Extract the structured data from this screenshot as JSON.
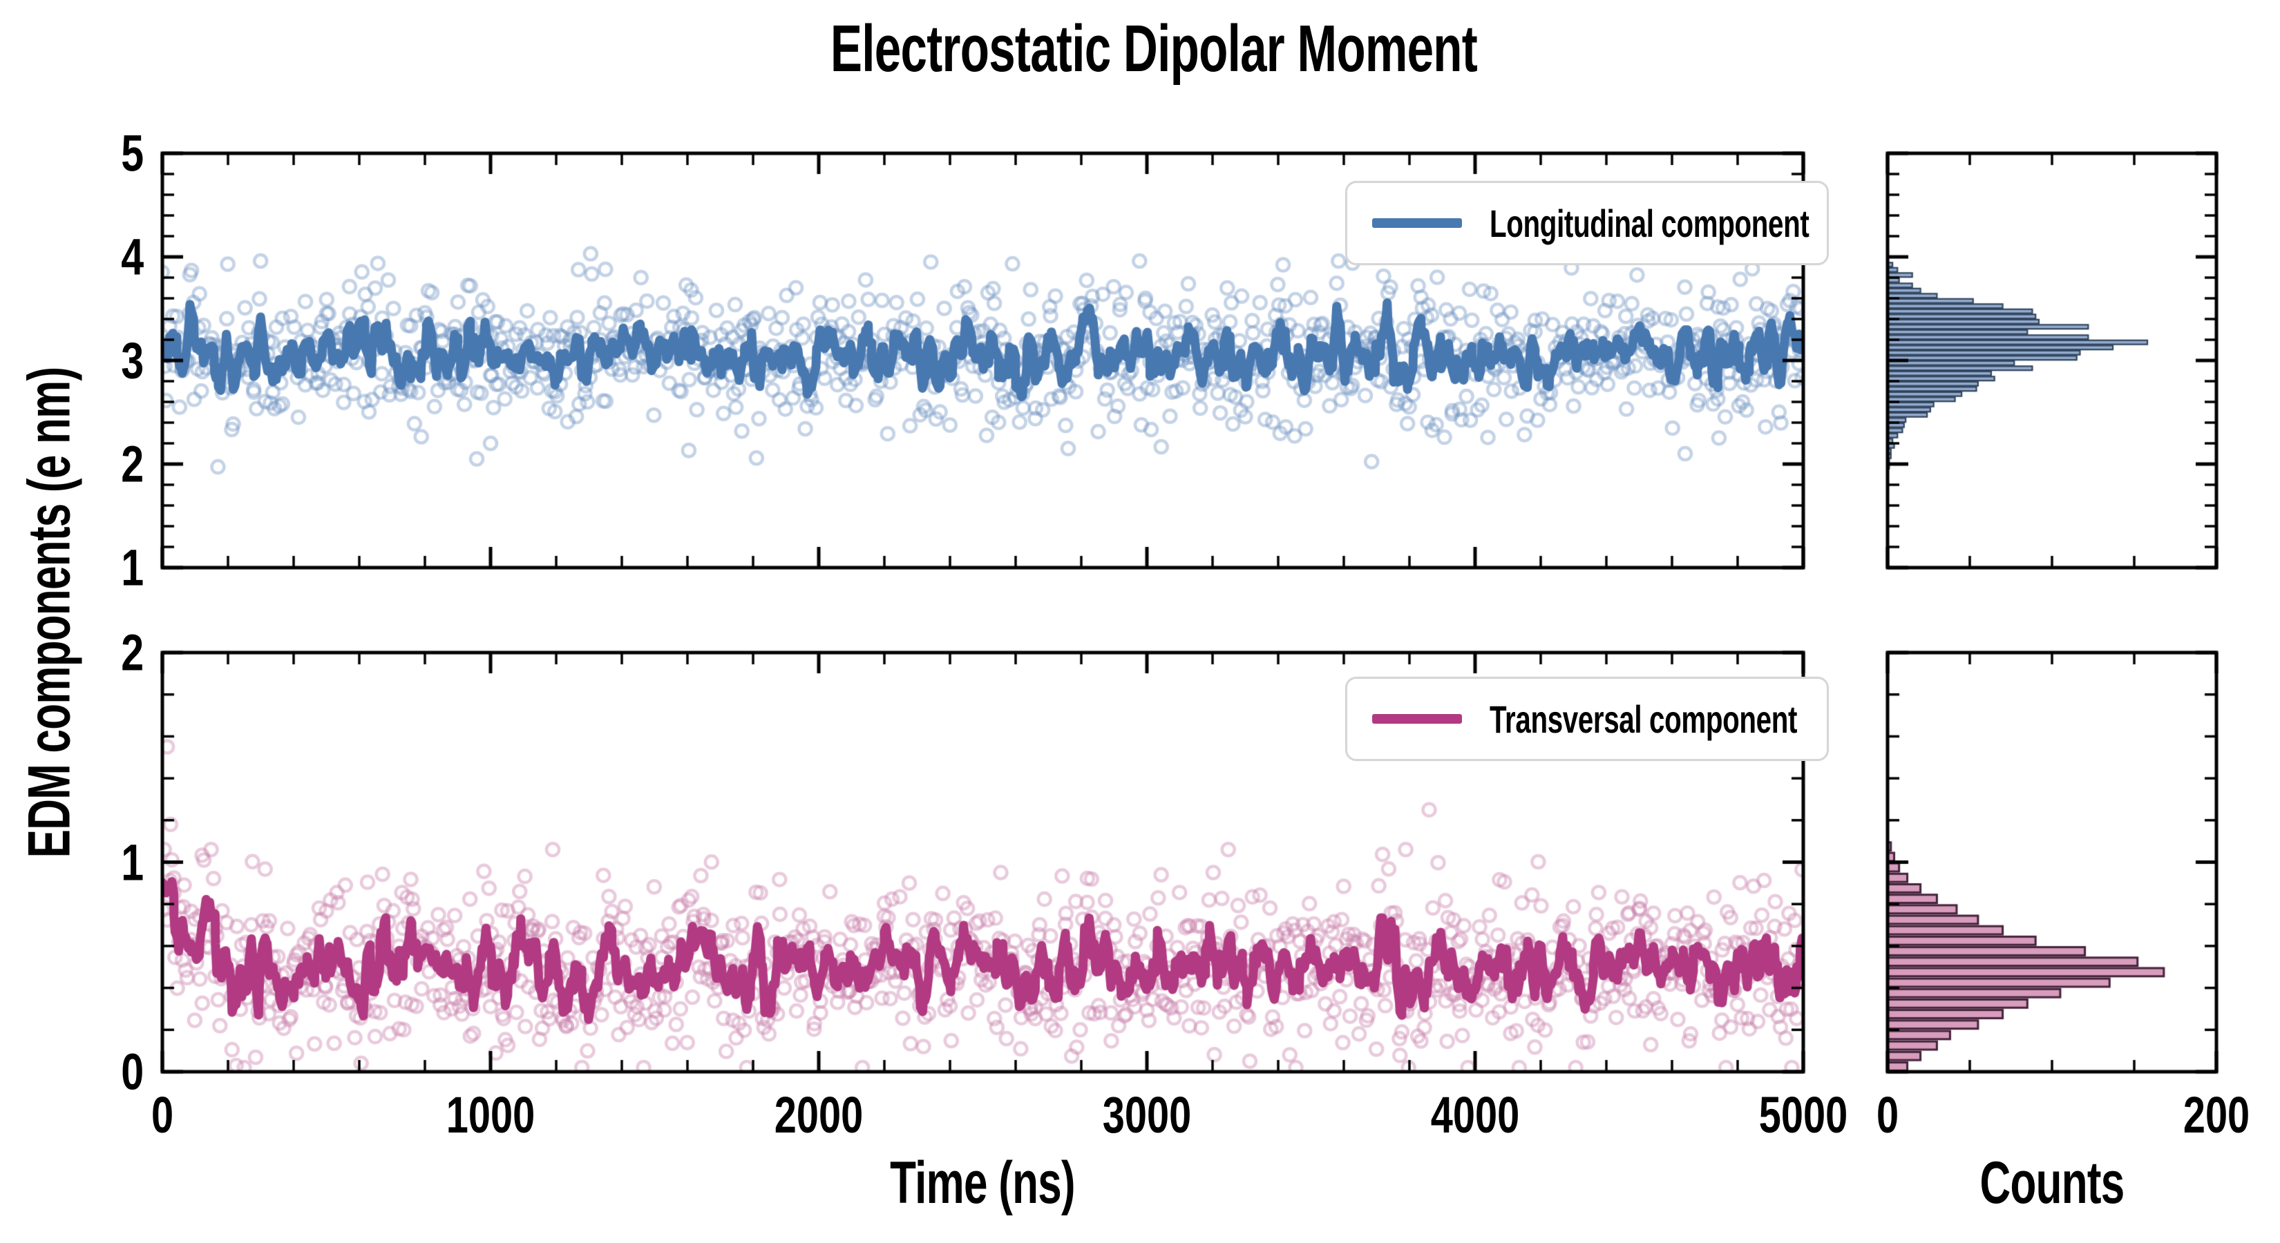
{
  "figure": {
    "title": "Electrostatic Dipolar Moment",
    "xlabel": "Time (ns)",
    "ylabel": "EDM components (e nm)",
    "counts_label": "Counts",
    "background": "#ffffff",
    "text_color": "#000000",
    "spine_color": "#000000"
  },
  "legends": {
    "longitudinal": "Longitudinal component",
    "transversal": "Transversal component"
  },
  "colors": {
    "longitudinal_line": "#4878b0",
    "longitudinal_marker": "#6b92c1",
    "longitudinal_hist_fill": "#92abce",
    "longitudinal_hist_edge": "#31445c",
    "transversal_line": "#b13a82",
    "transversal_marker": "#c77cab",
    "transversal_hist_fill": "#d89cbc",
    "transversal_hist_edge": "#43223a",
    "legend_border": "#d6d6d6"
  },
  "chart_data": [
    {
      "id": "longitudinal-timeseries",
      "type": "scatter",
      "panel": "main-top",
      "legend": "Longitudinal component",
      "x_range": [
        0,
        5000
      ],
      "y_range": [
        1,
        5
      ],
      "x_major_ticks": [
        0,
        1000,
        2000,
        3000,
        4000,
        5000
      ],
      "x_minor_step": 200,
      "x_tick_labels": [],
      "y_major_ticks": [
        5,
        4,
        3,
        2,
        1
      ],
      "y_tick_labels": [
        "5",
        "4",
        "3",
        "2",
        "1"
      ],
      "y_minor_step": 0.2,
      "n_points": 1150,
      "mean": 3.06,
      "sd": 0.34,
      "clip": [
        1.9,
        3.96
      ],
      "running_mean_window": 5,
      "seed": 7,
      "marker_radius": 9,
      "marker_alpha": 0.4,
      "outliers": [
        [
          1305,
          4.03
        ],
        [
          1350,
          3.88
        ],
        [
          958,
          2.05
        ],
        [
          1000,
          2.2
        ],
        [
          2760,
          2.15
        ],
        [
          4640,
          2.1
        ]
      ],
      "line_color": "#4878b0",
      "marker_color": "#6b92c1"
    },
    {
      "id": "transversal-timeseries",
      "type": "scatter",
      "panel": "main-bottom",
      "legend": "Transversal component",
      "x_range": [
        0,
        5000
      ],
      "y_range": [
        0,
        2
      ],
      "x_major_ticks": [
        0,
        1000,
        2000,
        3000,
        4000,
        5000
      ],
      "x_minor_step": 200,
      "x_tick_labels": [
        "0",
        "1000",
        "2000",
        "3000",
        "4000",
        "5000"
      ],
      "y_major_ticks": [
        2,
        1,
        0
      ],
      "y_tick_labels": [
        "2",
        "1",
        "0"
      ],
      "y_minor_step": 0.2,
      "n_points": 1150,
      "mean": 0.5,
      "sd": 0.205,
      "clip": [
        0.02,
        1.06
      ],
      "transient": {
        "amplitude": 0.33,
        "tau_ns": 130
      },
      "running_mean_window": 5,
      "seed": 21,
      "marker_radius": 9,
      "marker_alpha": 0.4,
      "outliers": [
        [
          15,
          1.55
        ],
        [
          25,
          1.18
        ],
        [
          3860,
          1.25
        ]
      ],
      "line_color": "#b13a82",
      "marker_color": "#c77cab"
    },
    {
      "id": "longitudinal-histogram",
      "type": "bar-horizontal",
      "panel": "hist-top",
      "xlabel": "Counts",
      "x_range": [
        0,
        200
      ],
      "x_major_ticks": [
        0,
        200
      ],
      "x_minor_step": 50,
      "x_tick_labels": [],
      "bin_start": 1.95,
      "bin_width": 0.05,
      "counts": [
        1,
        1,
        2,
        2,
        4,
        3,
        6,
        9,
        10,
        11,
        24,
        26,
        28,
        41,
        45,
        54,
        55,
        65,
        63,
        88,
        77,
        115,
        117,
        137,
        158,
        122,
        85,
        122,
        92,
        90,
        88,
        70,
        52,
        30,
        20,
        15,
        7,
        15,
        6,
        3
      ],
      "bar_fill": "#92abce",
      "bar_edge": "#31445c"
    },
    {
      "id": "transversal-histogram",
      "type": "bar-horizontal",
      "panel": "hist-bottom",
      "xlabel": "Counts",
      "x_range": [
        0,
        200
      ],
      "x_major_ticks": [
        0,
        200
      ],
      "x_minor_step": 50,
      "x_tick_labels": [
        "0",
        "200"
      ],
      "bin_start": 0.0,
      "bin_width": 0.05,
      "counts": [
        12,
        20,
        30,
        38,
        55,
        70,
        85,
        105,
        135,
        168,
        152,
        120,
        90,
        70,
        55,
        42,
        30,
        20,
        12,
        7,
        4,
        2
      ],
      "bar_fill": "#d89cbc",
      "bar_edge": "#43223a"
    }
  ]
}
